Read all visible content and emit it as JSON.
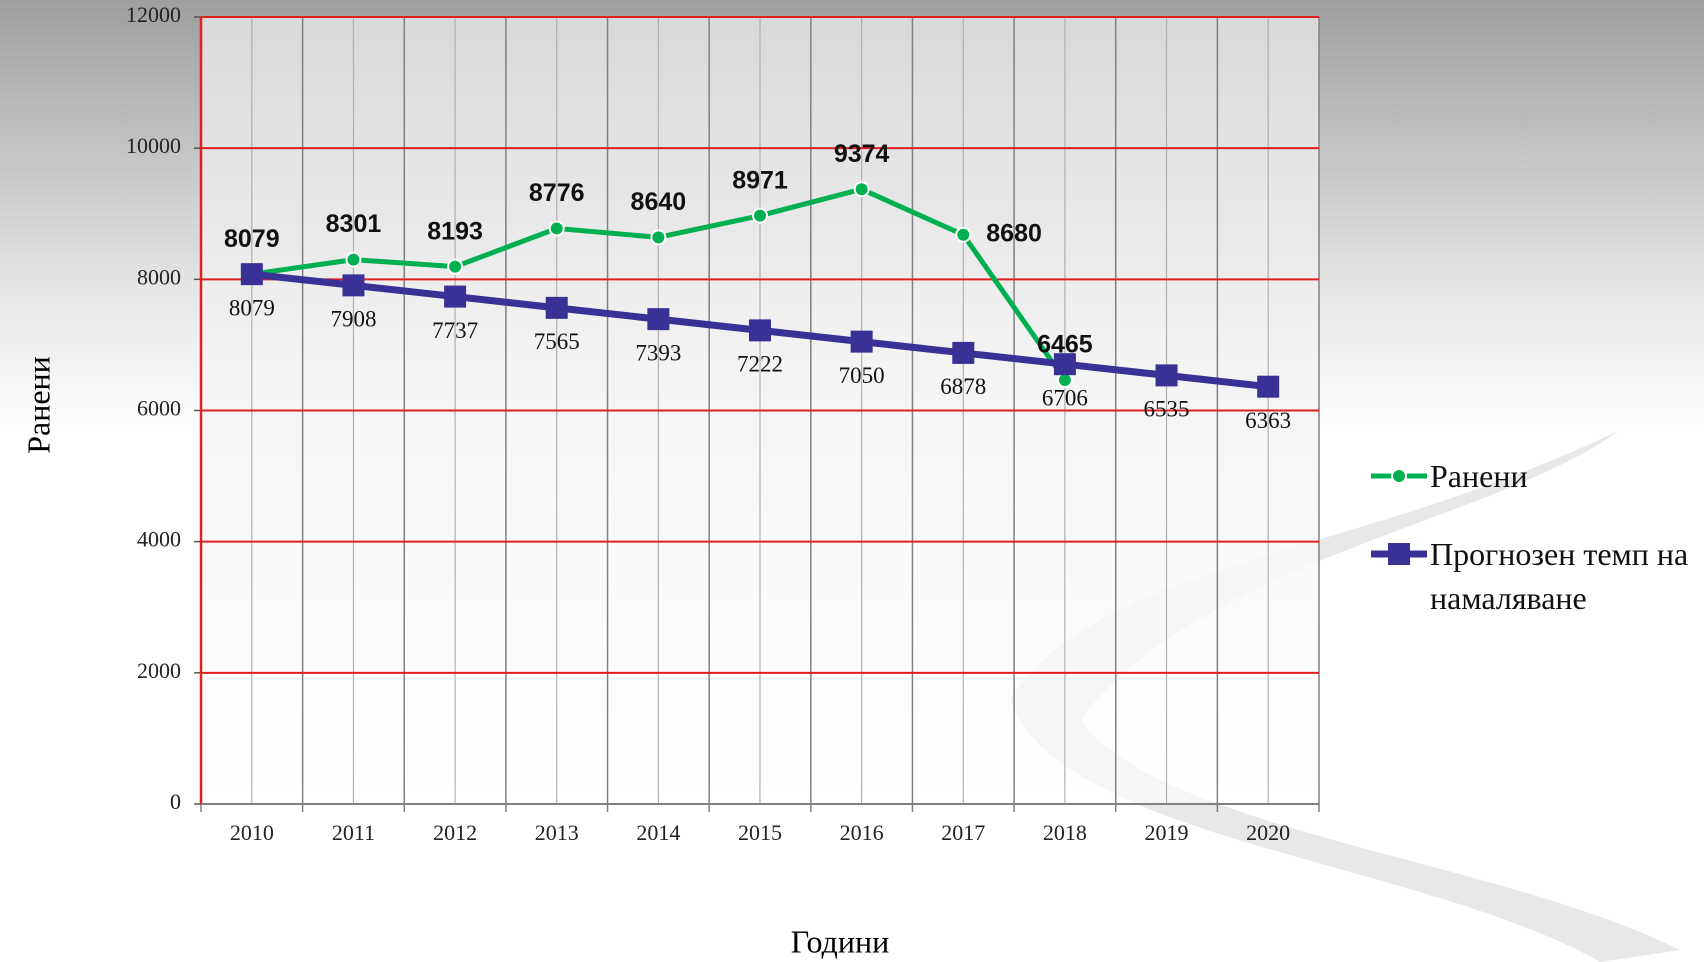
{
  "chart_data": {
    "type": "line",
    "x_label": "Години",
    "y_label": "Ранени",
    "categories": [
      "2010",
      "2011",
      "2012",
      "2013",
      "2014",
      "2015",
      "2016",
      "2017",
      "2018",
      "2019",
      "2020"
    ],
    "series": [
      {
        "name": "Ранени",
        "color": "#00b050",
        "marker": "circle",
        "values": [
          8079,
          8301,
          8193,
          8776,
          8640,
          8971,
          9374,
          8680,
          6465,
          null,
          null
        ]
      },
      {
        "name": "Прогнозен темп на намаляване",
        "color": "#3a3196",
        "marker": "square",
        "values": [
          8079,
          7908,
          7737,
          7565,
          7393,
          7222,
          7050,
          6878,
          6706,
          6535,
          6363
        ]
      }
    ],
    "ylim": [
      0,
      12000
    ],
    "yticks": [
      0,
      2000,
      4000,
      6000,
      8000,
      10000,
      12000
    ],
    "grid": true,
    "legend": "right"
  }
}
